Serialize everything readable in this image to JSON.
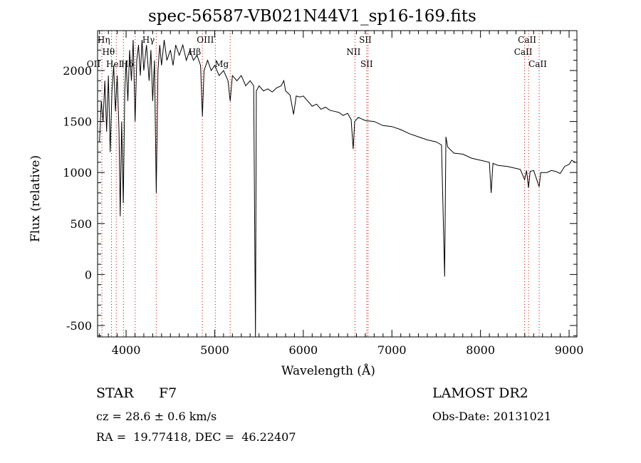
{
  "chart_data": {
    "type": "line",
    "title": "spec-56587-VB021N44V1_sp16-169.fits",
    "xlabel": "Wavelength (Å)",
    "ylabel": "Flux (relative)",
    "xlim": [
      3678,
      9088
    ],
    "ylim": [
      -612,
      2391
    ],
    "x_ticks": [
      4000,
      5000,
      6000,
      7000,
      8000,
      9000
    ],
    "y_ticks": [
      -500,
      0,
      500,
      1000,
      1500,
      2000
    ],
    "grid": false,
    "series": [
      {
        "name": "spectrum",
        "wavelength": [
          3700,
          3720,
          3740,
          3760,
          3780,
          3800,
          3820,
          3840,
          3860,
          3880,
          3900,
          3920,
          3934,
          3950,
          3968,
          3985,
          4000,
          4020,
          4040,
          4060,
          4080,
          4102,
          4120,
          4140,
          4160,
          4180,
          4200,
          4230,
          4260,
          4280,
          4300,
          4320,
          4340,
          4360,
          4380,
          4400,
          4430,
          4460,
          4500,
          4530,
          4560,
          4600,
          4640,
          4680,
          4720,
          4760,
          4800,
          4840,
          4861,
          4880,
          4920,
          4960,
          5000,
          5050,
          5100,
          5150,
          5175,
          5200,
          5250,
          5300,
          5350,
          5400,
          5440,
          5460,
          5470,
          5500,
          5550,
          5600,
          5650,
          5700,
          5750,
          5780,
          5800,
          5850,
          5890,
          5920,
          5960,
          6000,
          6050,
          6100,
          6150,
          6200,
          6250,
          6300,
          6350,
          6400,
          6450,
          6500,
          6540,
          6563,
          6580,
          6620,
          6700,
          6800,
          6900,
          7000,
          7100,
          7200,
          7300,
          7400,
          7500,
          7560,
          7595,
          7610,
          7630,
          7700,
          7800,
          7900,
          8000,
          8100,
          8120,
          8140,
          8200,
          8300,
          8400,
          8450,
          8498,
          8520,
          8542,
          8560,
          8600,
          8662,
          8680,
          8750,
          8800,
          8850,
          8900,
          8950,
          9000,
          9030,
          9070
        ],
        "flux": [
          1300,
          1700,
          1500,
          1900,
          1400,
          1950,
          1200,
          1800,
          2050,
          1600,
          1950,
          1400,
          570,
          1500,
          700,
          1800,
          2100,
          1700,
          2200,
          1900,
          2300,
          1500,
          2100,
          2250,
          1950,
          2300,
          2000,
          2250,
          1900,
          2200,
          1700,
          2100,
          800,
          2000,
          2250,
          2050,
          2300,
          2100,
          2200,
          2050,
          2250,
          2150,
          2250,
          2100,
          2200,
          2100,
          2150,
          2050,
          1550,
          2000,
          2100,
          2000,
          2050,
          1950,
          2000,
          1900,
          1700,
          1950,
          1900,
          1950,
          1850,
          1900,
          1850,
          -610,
          1800,
          1850,
          1800,
          1820,
          1790,
          1830,
          1850,
          1900,
          1800,
          1760,
          1570,
          1750,
          1740,
          1750,
          1700,
          1650,
          1670,
          1620,
          1640,
          1610,
          1600,
          1590,
          1560,
          1580,
          1520,
          1230,
          1500,
          1540,
          1510,
          1500,
          1460,
          1450,
          1420,
          1380,
          1350,
          1320,
          1300,
          1270,
          -20,
          1350,
          1250,
          1190,
          1180,
          1140,
          1120,
          1100,
          800,
          1090,
          1070,
          1060,
          1040,
          1030,
          930,
          1020,
          850,
          1010,
          1020,
          860,
          1000,
          1000,
          1020,
          1010,
          990,
          1060,
          1080,
          1120,
          1100
        ]
      }
    ],
    "line_markers": [
      {
        "label": "OII",
        "wavelength": 3727,
        "row": 2
      },
      {
        "label": "Hη",
        "wavelength": 3835,
        "row": 0
      },
      {
        "label": "Hθ",
        "wavelength": 3889,
        "row": 1
      },
      {
        "label": "HeI",
        "wavelength": 3970,
        "row": 2
      },
      {
        "label": "Hδ",
        "wavelength": 4102,
        "row": 2
      },
      {
        "label": "Hγ",
        "wavelength": 4340,
        "row": 0
      },
      {
        "label": "Hβ",
        "wavelength": 4861,
        "row": 1
      },
      {
        "label": "OIII",
        "wavelength": 5007,
        "row": 0
      },
      {
        "label": "Mg",
        "wavelength": 5175,
        "row": 2
      },
      {
        "label": "NII",
        "wavelength": 6583,
        "row": 1
      },
      {
        "label": "SII",
        "wavelength": 6716,
        "row": 0
      },
      {
        "label": "SII",
        "wavelength": 6731,
        "row": 2
      },
      {
        "label": "CaII",
        "wavelength": 8498,
        "row": 1
      },
      {
        "label": "CaII",
        "wavelength": 8542,
        "row": 0
      },
      {
        "label": "CaII",
        "wavelength": 8662,
        "row": 2
      }
    ],
    "marker_color": "#cc0000",
    "line_color": "#000000"
  },
  "info": {
    "class": "STAR",
    "subclass": "F7",
    "cz": "cz = 28.6 ± 0.6 km/s",
    "radec": "RA =  19.77418, DEC =  46.22407",
    "survey": "LAMOST DR2",
    "obs_date": "Obs-Date: 20131021"
  }
}
